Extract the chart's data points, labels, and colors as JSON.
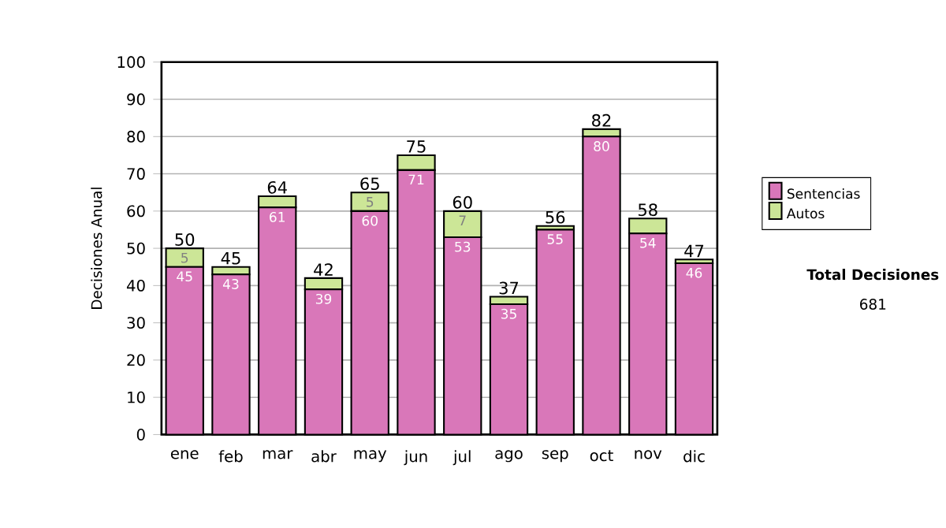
{
  "chart_data": {
    "type": "bar",
    "stacked": true,
    "ylabel": "Decisiones Anual",
    "categories": [
      "ene",
      "feb",
      "mar",
      "abr",
      "may",
      "jun",
      "jul",
      "ago",
      "sep",
      "oct",
      "nov",
      "dic"
    ],
    "series": [
      {
        "name": "Sentencias",
        "color": "#d977b9",
        "values": [
          45,
          43,
          61,
          39,
          60,
          71,
          53,
          35,
          55,
          80,
          54,
          46
        ],
        "value_labels": [
          "45",
          "43",
          "61",
          "39",
          "60",
          "71",
          "53",
          "35",
          "55",
          "80",
          "54",
          "46"
        ]
      },
      {
        "name": "Autos",
        "color": "#cce697",
        "values": [
          5,
          2,
          3,
          3,
          5,
          4,
          7,
          2,
          1,
          2,
          4,
          1
        ],
        "value_labels": [
          "5",
          null,
          null,
          null,
          "5",
          null,
          "7",
          null,
          null,
          null,
          null,
          null
        ]
      }
    ],
    "totals": [
      "50",
      "45",
      "64",
      "42",
      "65",
      "75",
      "60",
      "37",
      "56",
      "82",
      "58",
      "47"
    ],
    "ylim": [
      0,
      100
    ],
    "yticks": [
      0,
      10,
      20,
      30,
      40,
      50,
      60,
      70,
      80,
      90,
      100
    ],
    "grid": "y",
    "legend": "right",
    "annotations": [
      "Total Decisiones",
      "681"
    ]
  }
}
